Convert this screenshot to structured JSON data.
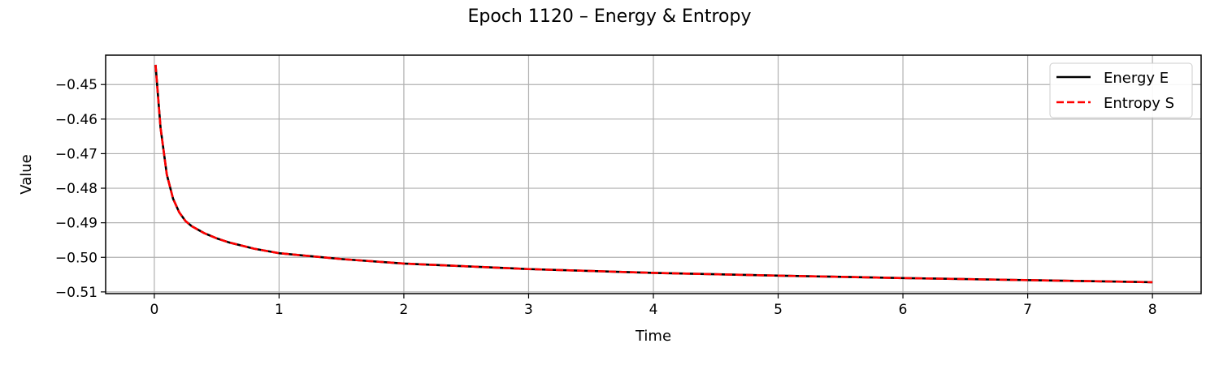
{
  "chart_data": {
    "type": "line",
    "title": "Epoch 1120 – Energy & Entropy",
    "xlabel": "Time",
    "ylabel": "Value",
    "xlim": [
      -0.39,
      8.39
    ],
    "ylim": [
      -0.5105,
      -0.4415
    ],
    "xticks": [
      0,
      1,
      2,
      3,
      4,
      5,
      6,
      7,
      8
    ],
    "xtick_labels": [
      "0",
      "1",
      "2",
      "3",
      "4",
      "5",
      "6",
      "7",
      "8"
    ],
    "yticks": [
      -0.45,
      -0.46,
      -0.47,
      -0.48,
      -0.49,
      -0.5,
      -0.51
    ],
    "ytick_labels": [
      "−0.45",
      "−0.46",
      "−0.47",
      "−0.48",
      "−0.49",
      "−0.50",
      "−0.51"
    ],
    "grid": true,
    "legend_position": "top-right",
    "x": [
      0.01,
      0.05,
      0.1,
      0.15,
      0.2,
      0.25,
      0.3,
      0.4,
      0.5,
      0.6,
      0.8,
      1.0,
      1.5,
      2.0,
      3.0,
      4.0,
      5.0,
      6.0,
      7.0,
      8.0
    ],
    "series": [
      {
        "name": "Energy E",
        "color": "#000000",
        "style": "solid",
        "values": [
          -0.4443,
          -0.4625,
          -0.476,
          -0.483,
          -0.487,
          -0.4895,
          -0.491,
          -0.493,
          -0.4945,
          -0.4957,
          -0.4975,
          -0.4988,
          -0.5005,
          -0.5018,
          -0.5034,
          -0.5045,
          -0.5053,
          -0.506,
          -0.5066,
          -0.5072
        ]
      },
      {
        "name": "Entropy S",
        "color": "#ff0000",
        "style": "dashed",
        "values": [
          -0.4443,
          -0.4625,
          -0.476,
          -0.483,
          -0.487,
          -0.4895,
          -0.491,
          -0.493,
          -0.4945,
          -0.4957,
          -0.4975,
          -0.4988,
          -0.5005,
          -0.5018,
          -0.5034,
          -0.5045,
          -0.5053,
          -0.506,
          -0.5066,
          -0.5072
        ]
      }
    ]
  }
}
